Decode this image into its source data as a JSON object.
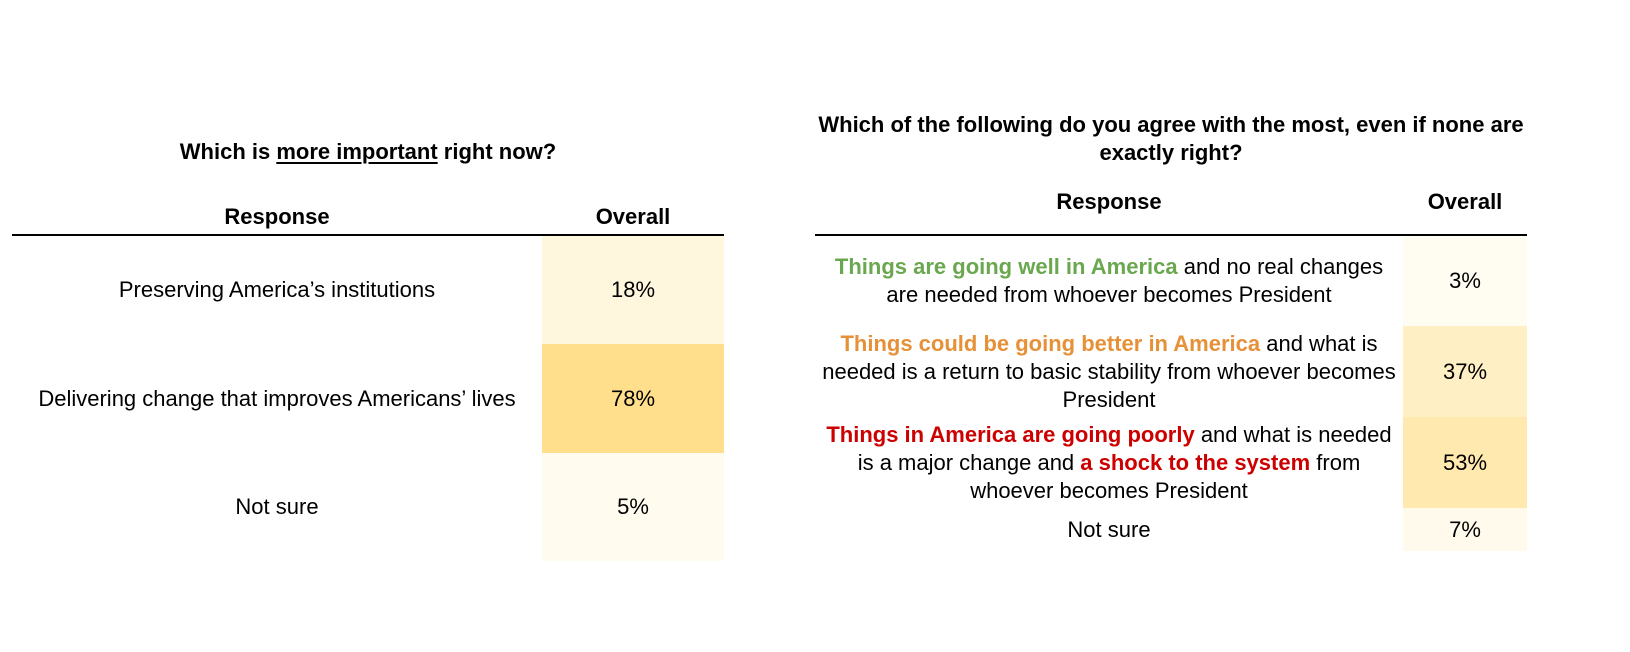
{
  "chart_data": [
    {
      "type": "table",
      "title_parts": [
        "Which is ",
        "more important",
        " right now?"
      ],
      "columns": [
        "Response",
        "Overall"
      ],
      "rows": [
        {
          "response": "Preserving America’s institutions",
          "overall": "18%",
          "value": 18
        },
        {
          "response": "Delivering change that improves Americans’ lives",
          "overall": "78%",
          "value": 78
        },
        {
          "response": "Not sure",
          "overall": "5%",
          "value": 5
        }
      ]
    },
    {
      "type": "table",
      "title": "Which of the following do you agree with the most, even if none are exactly right?",
      "columns": [
        "Response",
        "Overall"
      ],
      "rows": [
        {
          "parts": [
            {
              "text": "Things are going well in America",
              "style": "green"
            },
            {
              "text": " and no real changes are needed from whoever becomes President",
              "style": "plain"
            }
          ],
          "overall": "3%",
          "value": 3
        },
        {
          "parts": [
            {
              "text": "Things could be going better in America",
              "style": "orange"
            },
            {
              "text": " and what is needed is a return to basic stability from whoever becomes President",
              "style": "plain"
            }
          ],
          "overall": "37%",
          "value": 37
        },
        {
          "parts": [
            {
              "text": "Things in America are going poorly",
              "style": "red"
            },
            {
              "text": " and what is needed is a major change and ",
              "style": "plain"
            },
            {
              "text": "a shock to the system",
              "style": "red"
            },
            {
              "text": " from whoever becomes President",
              "style": "plain"
            }
          ],
          "overall": "53%",
          "value": 53
        },
        {
          "parts": [
            {
              "text": "Not sure",
              "style": "plain"
            }
          ],
          "overall": "7%",
          "value": 7
        }
      ]
    }
  ],
  "colors": {
    "heat_low": "#fffdf6",
    "heat_high": "#ffdf8c",
    "green": "#6aa84f",
    "orange": "#e69138",
    "red": "#cc0000"
  }
}
